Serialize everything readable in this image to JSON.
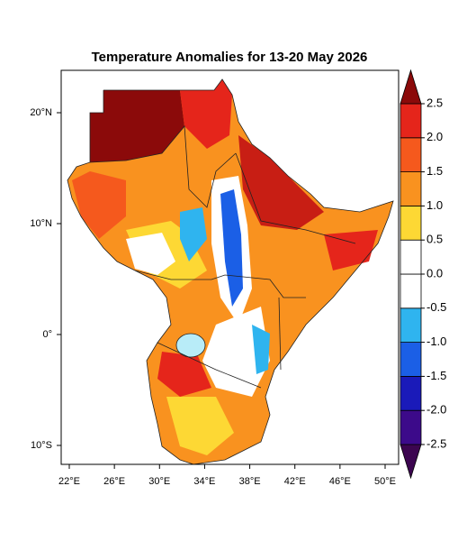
{
  "title": "Temperature Anomalies for 13-20 May 2026",
  "lon_ticks": [
    {
      "value": 22,
      "label": "22°E"
    },
    {
      "value": 26,
      "label": "26°E"
    },
    {
      "value": 30,
      "label": "30°E"
    },
    {
      "value": 34,
      "label": "34°E"
    },
    {
      "value": 38,
      "label": "38°E"
    },
    {
      "value": 42,
      "label": "42°E"
    },
    {
      "value": 46,
      "label": "46°E"
    },
    {
      "value": 50,
      "label": "50°E"
    }
  ],
  "lat_ticks": [
    {
      "value": 20,
      "label": "20°N"
    },
    {
      "value": 10,
      "label": "10°N"
    },
    {
      "value": 0,
      "label": "0°"
    },
    {
      "value": -10,
      "label": "10°S"
    }
  ],
  "colorbar": {
    "ticks": [
      {
        "value": -2.5,
        "label": "-2.5"
      },
      {
        "value": -2,
        "label": "-2.0"
      },
      {
        "value": -1.5,
        "label": "-1.5"
      },
      {
        "value": -1,
        "label": "-1.0"
      },
      {
        "value": -0.5,
        "label": "-0.5"
      },
      {
        "value": 0,
        "label": "0.0"
      },
      {
        "value": 0.5,
        "label": "0.5"
      },
      {
        "value": 1,
        "label": "1.0"
      },
      {
        "value": 1.5,
        "label": "1.5"
      },
      {
        "value": 2,
        "label": "2.0"
      },
      {
        "value": 2.5,
        "label": "2.5"
      }
    ],
    "colors": [
      "#3c0550",
      "#3c0a8a",
      "#1a1ab9",
      "#1b5fe6",
      "#2fb4ef",
      "#ffffff",
      "#ffffff",
      "#fdd834",
      "#f9921f",
      "#f5591d",
      "#e5251b",
      "#8b0a0a"
    ]
  }
}
